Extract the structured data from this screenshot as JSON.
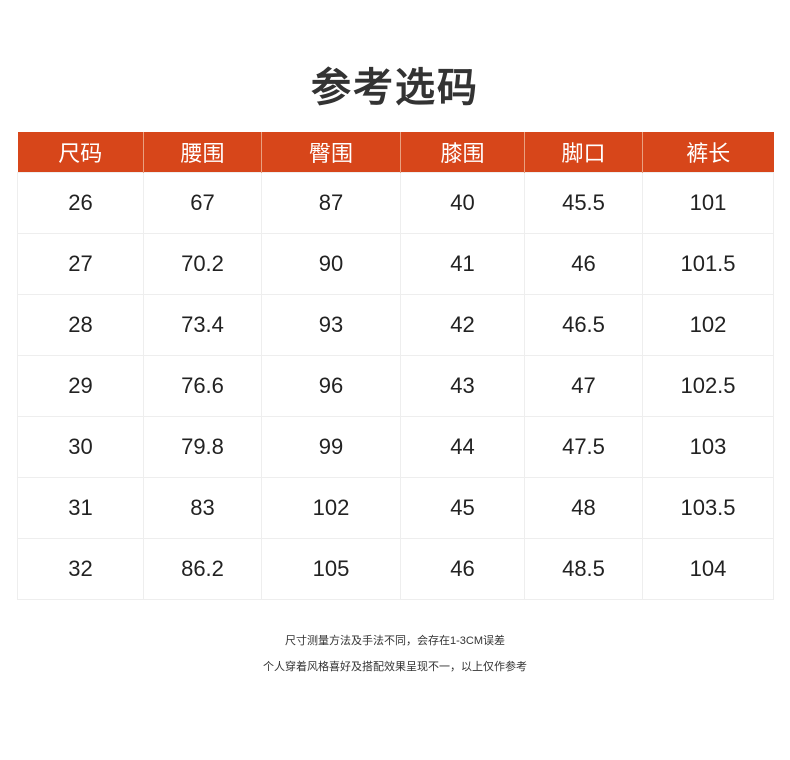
{
  "header": {
    "title": "参考选码"
  },
  "table": {
    "columns": [
      "尺码",
      "腰围",
      "臀围",
      "膝围",
      "脚口",
      "裤长"
    ],
    "rows": [
      [
        "26",
        "67",
        "87",
        "40",
        "45.5",
        "101"
      ],
      [
        "27",
        "70.2",
        "90",
        "41",
        "46",
        "101.5"
      ],
      [
        "28",
        "73.4",
        "93",
        "42",
        "46.5",
        "102"
      ],
      [
        "29",
        "76.6",
        "96",
        "43",
        "47",
        "102.5"
      ],
      [
        "30",
        "79.8",
        "99",
        "44",
        "47.5",
        "103"
      ],
      [
        "31",
        "83",
        "102",
        "45",
        "48",
        "103.5"
      ],
      [
        "32",
        "86.2",
        "105",
        "46",
        "48.5",
        "104"
      ]
    ]
  },
  "notes": [
    "尺寸测量方法及手法不同，会存在1-3CM误差",
    "个人穿着风格喜好及搭配效果呈现不一，以上仅作参考"
  ]
}
